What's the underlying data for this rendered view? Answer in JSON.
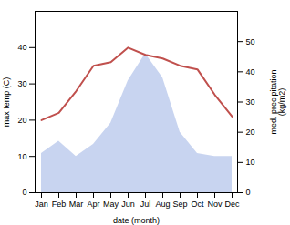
{
  "chart_data": {
    "type": "line",
    "xlabel": "date (month)",
    "ylabel": "max temp (C)",
    "y2label": "med. precipitation\n(kg/m2)",
    "categories": [
      "Jan",
      "Feb",
      "Mar",
      "Apr",
      "May",
      "Jun",
      "Jul",
      "Aug",
      "Sep",
      "Oct",
      "Nov",
      "Dec"
    ],
    "series": [
      {
        "type": "area",
        "axis": "y2",
        "color": "#c8d4f0",
        "values": [
          13,
          17,
          12,
          16,
          23,
          37,
          46,
          38,
          20,
          13,
          12,
          12
        ]
      },
      {
        "type": "line",
        "axis": "y",
        "color": "#c0504d",
        "values": [
          20,
          22,
          28,
          35,
          36,
          40,
          38,
          37,
          35,
          34,
          27,
          21
        ]
      }
    ],
    "ylim": [
      0,
      50
    ],
    "yticks": [
      0,
      10,
      20,
      30,
      40
    ],
    "y2lim": [
      0,
      60
    ],
    "y2ticks": [
      0,
      10,
      20,
      30,
      40,
      50
    ],
    "grid": false
  }
}
